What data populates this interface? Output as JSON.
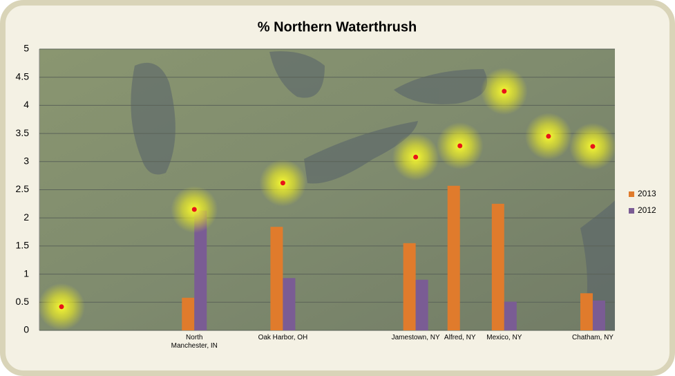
{
  "chart_data": {
    "type": "bar",
    "title": "% Northern Waterthrush",
    "categories": [
      null,
      null,
      null,
      "North Manchester, IN",
      null,
      "Oak Harbor, OH",
      null,
      null,
      "Jamestown, NY",
      "Alfred, NY",
      "Mexico, NY",
      null,
      "Chatham, NY"
    ],
    "series": [
      {
        "name": "2013",
        "color": "#e07b2c",
        "values": [
          null,
          null,
          null,
          0.58,
          null,
          1.84,
          null,
          null,
          1.55,
          2.57,
          2.25,
          null,
          0.66
        ]
      },
      {
        "name": "2012",
        "color": "#7a5c94",
        "values": [
          null,
          null,
          null,
          2.13,
          null,
          0.93,
          null,
          null,
          0.9,
          null,
          0.51,
          null,
          0.53
        ]
      }
    ],
    "markers": {
      "color": "#e8141a",
      "values": [
        0.42,
        null,
        null,
        2.15,
        null,
        2.62,
        null,
        null,
        3.08,
        3.28,
        4.25,
        3.45,
        3.27
      ]
    },
    "ylim": [
      0,
      5
    ],
    "yticks": [
      0,
      0.5,
      1,
      1.5,
      2,
      2.5,
      3,
      3.5,
      4,
      4.5,
      5
    ],
    "grid": true,
    "legend": "right"
  }
}
